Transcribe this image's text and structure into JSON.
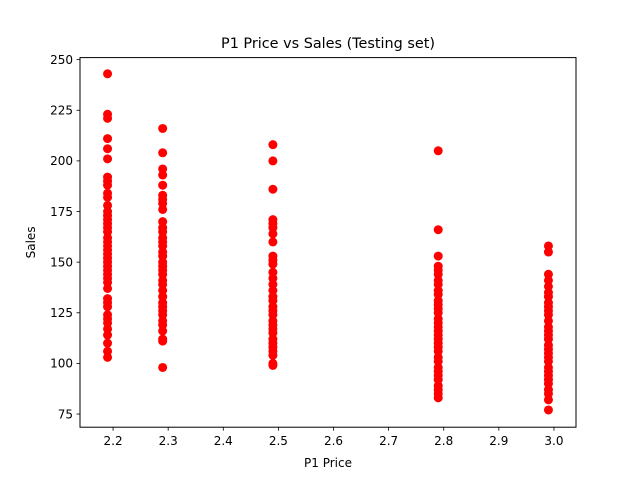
{
  "chart_data": {
    "type": "scatter",
    "title": "P1 Price vs Sales (Testing set)",
    "xlabel": "P1 Price",
    "ylabel": "Sales",
    "xlim": [
      2.14,
      3.04
    ],
    "ylim": [
      68.5,
      251
    ],
    "xticks": [
      "2.2",
      "2.3",
      "2.4",
      "2.5",
      "2.6",
      "2.7",
      "2.8",
      "2.9",
      "3.0"
    ],
    "yticks": [
      "75",
      "100",
      "125",
      "150",
      "175",
      "200",
      "225",
      "250"
    ],
    "grid": false,
    "marker_color": "#ff0000",
    "series": [
      {
        "points": [
          {
            "x": 2.19,
            "values": [
              243,
              223,
              221,
              211,
              206,
              201,
              192,
              190,
              188,
              184,
              182,
              178,
              175,
              173,
              171,
              169,
              167,
              165,
              162,
              160,
              158,
              156,
              154,
              152,
              150,
              148,
              146,
              144,
              142,
              140,
              137,
              132,
              130,
              128,
              124,
              122,
              120,
              117,
              114,
              110,
              106,
              103
            ]
          },
          {
            "x": 2.29,
            "values": [
              216,
              204,
              196,
              193,
              188,
              183,
              181,
              179,
              176,
              170,
              167,
              165,
              162,
              160,
              158,
              155,
              153,
              150,
              148,
              146,
              144,
              141,
              139,
              136,
              133,
              130,
              128,
              126,
              124,
              121,
              119,
              116,
              112,
              111,
              98
            ]
          },
          {
            "x": 2.49,
            "values": [
              208,
              200,
              186,
              171,
              169,
              167,
              164,
              160,
              153,
              151,
              149,
              145,
              142,
              139,
              136,
              133,
              131,
              128,
              126,
              124,
              121,
              119,
              117,
              115,
              112,
              110,
              108,
              106,
              104,
              100,
              99
            ]
          },
          {
            "x": 2.79,
            "values": [
              205,
              166,
              153,
              148,
              146,
              144,
              141,
              139,
              136,
              134,
              131,
              129,
              127,
              125,
              122,
              120,
              118,
              116,
              114,
              112,
              110,
              108,
              106,
              103,
              101,
              98,
              96,
              94,
              92,
              89,
              87,
              85,
              83
            ]
          },
          {
            "x": 2.99,
            "values": [
              158,
              155,
              144,
              141,
              138,
              135,
              133,
              130,
              128,
              126,
              124,
              121,
              118,
              116,
              114,
              112,
              109,
              107,
              105,
              103,
              101,
              98,
              96,
              94,
              92,
              90,
              87,
              85,
              82,
              77
            ]
          }
        ]
      }
    ]
  }
}
